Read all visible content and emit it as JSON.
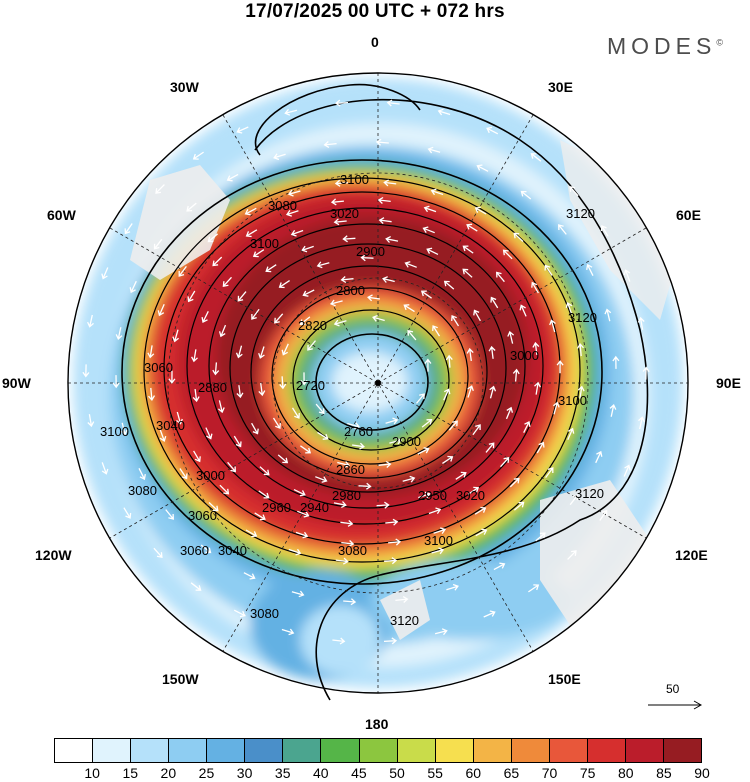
{
  "title": "17/07/2025  00 UTC  + 072 hrs",
  "brand": "MODES",
  "brand_mark": "©",
  "longitude_labels": [
    {
      "id": "lon-0",
      "text": "0"
    },
    {
      "id": "lon-30e",
      "text": "30E"
    },
    {
      "id": "lon-60e",
      "text": "60E"
    },
    {
      "id": "lon-90e",
      "text": "90E"
    },
    {
      "id": "lon-120e",
      "text": "120E"
    },
    {
      "id": "lon-150e",
      "text": "150E"
    },
    {
      "id": "lon-180",
      "text": "180"
    },
    {
      "id": "lon-150w",
      "text": "150W"
    },
    {
      "id": "lon-120w",
      "text": "120W"
    },
    {
      "id": "lon-90w",
      "text": "90W"
    },
    {
      "id": "lon-60w",
      "text": "60W"
    },
    {
      "id": "lon-30w",
      "text": "30W"
    }
  ],
  "contour_labels": [
    "3100",
    "3080",
    "3020",
    "2900",
    "2800",
    "2820",
    "3120",
    "3120",
    "3120",
    "3100",
    "3000",
    "2900",
    "2760",
    "2720",
    "2860",
    "2980",
    "2950",
    "3020",
    "3100",
    "3080",
    "3060",
    "3040",
    "3060",
    "3080",
    "3100",
    "3120",
    "3000",
    "2960",
    "2940",
    "2880",
    "3040",
    "3060",
    "3080",
    "3100"
  ],
  "colorbar": {
    "ticks": [
      "10",
      "15",
      "20",
      "25",
      "30",
      "35",
      "40",
      "45",
      "50",
      "55",
      "60",
      "65",
      "70",
      "75",
      "80",
      "85",
      "90"
    ],
    "colors": [
      "#ffffff",
      "#e0f3fd",
      "#b5e1fa",
      "#8ecdf2",
      "#64b1e3",
      "#4a8fc9",
      "#4ba58f",
      "#55b548",
      "#8cc63f",
      "#c9dc4a",
      "#f6df4f",
      "#f3b446",
      "#ef8a3a",
      "#e8573a",
      "#d62f2e",
      "#bb1d2b",
      "#961c22"
    ]
  },
  "reference_vector": {
    "value": "50"
  }
}
